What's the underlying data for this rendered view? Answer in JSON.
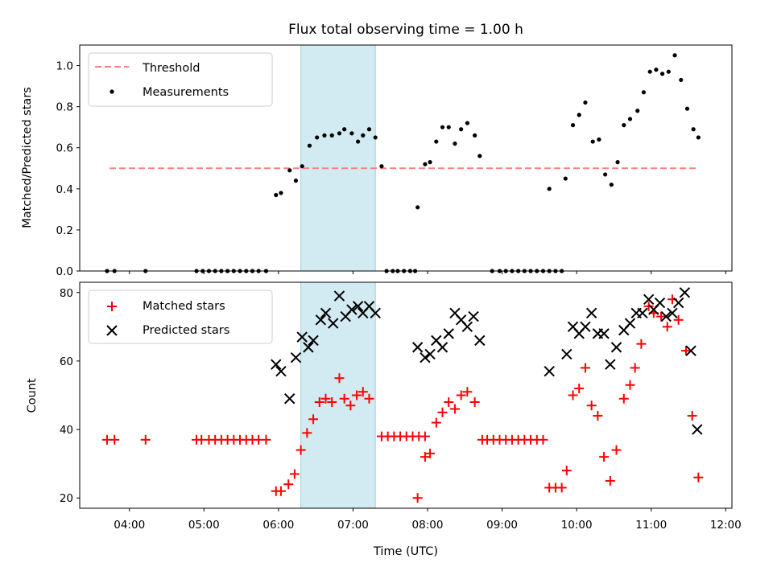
{
  "chart_data": [
    {
      "type": "scatter",
      "title": "Flux total observing time = 1.00 h",
      "ylabel": "Matched/Predicted stars",
      "xlabel": "",
      "xlim": [
        "03:20",
        "12:05"
      ],
      "ylim": [
        0,
        1.1
      ],
      "yticks": [
        "0.0",
        "0.2",
        "0.4",
        "0.6",
        "0.8",
        "1.0"
      ],
      "legend_position": "top-left",
      "shaded_interval": [
        "06:18",
        "07:18"
      ],
      "threshold": {
        "name": "Threshold",
        "y": 0.5,
        "x": [
          "03:44",
          "11:38"
        ],
        "color": "#ff7f7f",
        "style": "dashed"
      },
      "series": [
        {
          "name": "Measurements",
          "marker": "dot",
          "color": "#000000",
          "points": [
            [
              "03:42",
              0
            ],
            [
              "03:48",
              0
            ],
            [
              "04:13",
              0
            ],
            [
              "04:54",
              0
            ],
            [
              "04:59",
              0
            ],
            [
              "05:04",
              0
            ],
            [
              "05:09",
              0
            ],
            [
              "05:14",
              0
            ],
            [
              "05:19",
              0
            ],
            [
              "05:24",
              0
            ],
            [
              "05:29",
              0
            ],
            [
              "05:34",
              0
            ],
            [
              "05:39",
              0
            ],
            [
              "05:44",
              0
            ],
            [
              "05:50",
              0
            ],
            [
              "05:58",
              0.37
            ],
            [
              "06:02",
              0.38
            ],
            [
              "06:09",
              0.49
            ],
            [
              "06:14",
              0.44
            ],
            [
              "06:19",
              0.51
            ],
            [
              "06:25",
              0.61
            ],
            [
              "06:31",
              0.65
            ],
            [
              "06:37",
              0.66
            ],
            [
              "06:43",
              0.66
            ],
            [
              "06:49",
              0.67
            ],
            [
              "06:53",
              0.69
            ],
            [
              "06:59",
              0.67
            ],
            [
              "07:04",
              0.63
            ],
            [
              "07:08",
              0.66
            ],
            [
              "07:13",
              0.69
            ],
            [
              "07:18",
              0.65
            ],
            [
              "07:23",
              0.51
            ],
            [
              "07:27",
              0
            ],
            [
              "07:32",
              0
            ],
            [
              "07:36",
              0
            ],
            [
              "07:41",
              0
            ],
            [
              "07:46",
              0
            ],
            [
              "07:50",
              0
            ],
            [
              "07:52",
              0.31
            ],
            [
              "07:58",
              0.52
            ],
            [
              "08:02",
              0.53
            ],
            [
              "08:07",
              0.63
            ],
            [
              "08:12",
              0.7
            ],
            [
              "08:17",
              0.7
            ],
            [
              "08:22",
              0.62
            ],
            [
              "08:27",
              0.69
            ],
            [
              "08:32",
              0.72
            ],
            [
              "08:38",
              0.66
            ],
            [
              "08:42",
              0.56
            ],
            [
              "08:52",
              0
            ],
            [
              "08:58",
              0
            ],
            [
              "09:03",
              0
            ],
            [
              "09:08",
              0
            ],
            [
              "09:13",
              0
            ],
            [
              "09:18",
              0
            ],
            [
              "09:23",
              0
            ],
            [
              "09:28",
              0
            ],
            [
              "09:33",
              0
            ],
            [
              "09:38",
              0
            ],
            [
              "09:43",
              0
            ],
            [
              "09:48",
              0
            ],
            [
              "09:38",
              0.4
            ],
            [
              "09:51",
              0.45
            ],
            [
              "09:57",
              0.71
            ],
            [
              "10:02",
              0.76
            ],
            [
              "10:07",
              0.82
            ],
            [
              "10:13",
              0.63
            ],
            [
              "10:18",
              0.64
            ],
            [
              "10:23",
              0.47
            ],
            [
              "10:28",
              0.42
            ],
            [
              "10:33",
              0.53
            ],
            [
              "10:38",
              0.71
            ],
            [
              "10:43",
              0.74
            ],
            [
              "10:49",
              0.78
            ],
            [
              "10:54",
              0.87
            ],
            [
              "10:59",
              0.97
            ],
            [
              "11:04",
              0.98
            ],
            [
              "11:09",
              0.96
            ],
            [
              "11:14",
              0.97
            ],
            [
              "11:19",
              1.05
            ],
            [
              "11:24",
              0.93
            ],
            [
              "11:29",
              0.79
            ],
            [
              "11:34",
              0.69
            ],
            [
              "11:38",
              0.65
            ]
          ]
        }
      ]
    },
    {
      "type": "scatter",
      "title": "",
      "xlabel": "Time (UTC)",
      "ylabel": "Count",
      "xlim": [
        "03:20",
        "12:05"
      ],
      "ylim": [
        17,
        83
      ],
      "xticks": [
        "04:00",
        "05:00",
        "06:00",
        "07:00",
        "08:00",
        "09:00",
        "10:00",
        "11:00",
        "12:00"
      ],
      "yticks": [
        "20",
        "40",
        "60",
        "80"
      ],
      "legend_position": "top-left",
      "shaded_interval": [
        "06:18",
        "07:18"
      ],
      "series": [
        {
          "name": "Matched stars",
          "marker": "plus",
          "color": "#ff0000",
          "points": [
            [
              "03:42",
              37
            ],
            [
              "03:48",
              37
            ],
            [
              "04:13",
              37
            ],
            [
              "04:54",
              37
            ],
            [
              "04:58",
              37
            ],
            [
              "05:04",
              37
            ],
            [
              "05:09",
              37
            ],
            [
              "05:14",
              37
            ],
            [
              "05:19",
              37
            ],
            [
              "05:24",
              37
            ],
            [
              "05:29",
              37
            ],
            [
              "05:34",
              37
            ],
            [
              "05:39",
              37
            ],
            [
              "05:44",
              37
            ],
            [
              "05:50",
              37
            ],
            [
              "05:58",
              22
            ],
            [
              "06:02",
              22
            ],
            [
              "06:08",
              24
            ],
            [
              "06:13",
              27
            ],
            [
              "06:18",
              34
            ],
            [
              "06:23",
              39
            ],
            [
              "06:28",
              43
            ],
            [
              "06:33",
              48
            ],
            [
              "06:38",
              49
            ],
            [
              "06:43",
              48
            ],
            [
              "06:49",
              55
            ],
            [
              "06:53",
              49
            ],
            [
              "06:58",
              47
            ],
            [
              "07:03",
              50
            ],
            [
              "07:08",
              51
            ],
            [
              "07:13",
              49
            ],
            [
              "07:23",
              38
            ],
            [
              "07:28",
              38
            ],
            [
              "07:33",
              38
            ],
            [
              "07:38",
              38
            ],
            [
              "07:43",
              38
            ],
            [
              "07:48",
              38
            ],
            [
              "07:53",
              38
            ],
            [
              "07:58",
              38
            ],
            [
              "07:52",
              20
            ],
            [
              "07:58",
              32
            ],
            [
              "08:02",
              33
            ],
            [
              "08:07",
              42
            ],
            [
              "08:12",
              45
            ],
            [
              "08:17",
              48
            ],
            [
              "08:22",
              46
            ],
            [
              "08:27",
              50
            ],
            [
              "08:32",
              51
            ],
            [
              "08:38",
              48
            ],
            [
              "08:44",
              37
            ],
            [
              "08:48",
              37
            ],
            [
              "08:53",
              37
            ],
            [
              "08:58",
              37
            ],
            [
              "09:03",
              37
            ],
            [
              "09:08",
              37
            ],
            [
              "09:13",
              37
            ],
            [
              "09:18",
              37
            ],
            [
              "09:23",
              37
            ],
            [
              "09:28",
              37
            ],
            [
              "09:33",
              37
            ],
            [
              "09:38",
              23
            ],
            [
              "09:43",
              23
            ],
            [
              "09:48",
              23
            ],
            [
              "09:52",
              28
            ],
            [
              "09:57",
              50
            ],
            [
              "10:02",
              52
            ],
            [
              "10:07",
              58
            ],
            [
              "10:12",
              47
            ],
            [
              "10:17",
              44
            ],
            [
              "10:22",
              32
            ],
            [
              "10:27",
              25
            ],
            [
              "10:32",
              34
            ],
            [
              "10:38",
              49
            ],
            [
              "10:43",
              53
            ],
            [
              "10:47",
              58
            ],
            [
              "10:52",
              65
            ],
            [
              "10:58",
              76
            ],
            [
              "11:02",
              74
            ],
            [
              "11:08",
              73
            ],
            [
              "11:13",
              70
            ],
            [
              "11:17",
              78
            ],
            [
              "11:22",
              72
            ],
            [
              "11:28",
              63
            ],
            [
              "11:33",
              44
            ],
            [
              "11:38",
              26
            ]
          ]
        },
        {
          "name": "Predicted stars",
          "marker": "x",
          "color": "#000000",
          "points": [
            [
              "05:58",
              59
            ],
            [
              "06:02",
              57
            ],
            [
              "06:09",
              49
            ],
            [
              "06:14",
              61
            ],
            [
              "06:19",
              67
            ],
            [
              "06:24",
              64
            ],
            [
              "06:28",
              66
            ],
            [
              "06:34",
              72
            ],
            [
              "06:38",
              74
            ],
            [
              "06:44",
              71
            ],
            [
              "06:49",
              79
            ],
            [
              "06:54",
              73
            ],
            [
              "06:59",
              75
            ],
            [
              "07:04",
              76
            ],
            [
              "07:08",
              74
            ],
            [
              "07:13",
              76
            ],
            [
              "07:18",
              74
            ],
            [
              "07:52",
              64
            ],
            [
              "07:58",
              61
            ],
            [
              "08:02",
              62
            ],
            [
              "08:07",
              66
            ],
            [
              "08:12",
              64
            ],
            [
              "08:17",
              68
            ],
            [
              "08:22",
              74
            ],
            [
              "08:27",
              72
            ],
            [
              "08:32",
              70
            ],
            [
              "08:37",
              73
            ],
            [
              "08:42",
              66
            ],
            [
              "09:38",
              57
            ],
            [
              "09:52",
              62
            ],
            [
              "09:57",
              70
            ],
            [
              "10:02",
              68
            ],
            [
              "10:07",
              70
            ],
            [
              "10:12",
              74
            ],
            [
              "10:17",
              68
            ],
            [
              "10:22",
              68
            ],
            [
              "10:27",
              59
            ],
            [
              "10:32",
              64
            ],
            [
              "10:38",
              69
            ],
            [
              "10:43",
              71
            ],
            [
              "10:48",
              74
            ],
            [
              "10:53",
              74
            ],
            [
              "10:58",
              78
            ],
            [
              "11:02",
              75
            ],
            [
              "11:07",
              77
            ],
            [
              "11:12",
              73
            ],
            [
              "11:17",
              74
            ],
            [
              "11:22",
              77
            ],
            [
              "11:27",
              80
            ],
            [
              "11:32",
              63
            ],
            [
              "11:37",
              40
            ]
          ]
        }
      ]
    }
  ]
}
